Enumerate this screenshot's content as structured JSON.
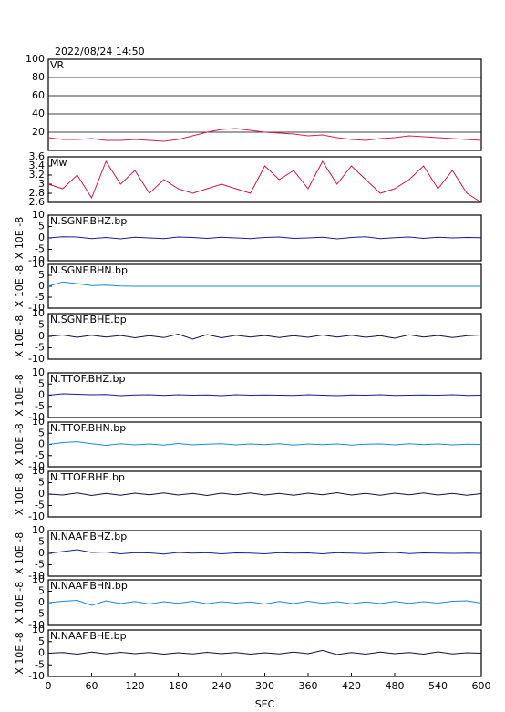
{
  "chart_data": [
    {
      "type": "line",
      "title": "2022/08/24 14:50",
      "xlim": [
        0,
        600
      ],
      "ylim": [
        0,
        100
      ],
      "yticks": [
        20,
        40,
        60,
        80,
        100
      ],
      "grid": true,
      "x": [
        0,
        20,
        40,
        60,
        80,
        100,
        120,
        140,
        160,
        180,
        200,
        220,
        240,
        260,
        280,
        300,
        320,
        340,
        360,
        380,
        400,
        420,
        440,
        460,
        480,
        500,
        520,
        540,
        560,
        580,
        600
      ],
      "series": [
        {
          "name": "VR",
          "color": "#d4204c",
          "values": [
            14,
            12,
            12,
            13,
            11,
            11,
            12,
            11,
            10,
            12,
            16,
            20,
            23,
            24,
            22,
            20,
            19,
            18,
            16,
            17,
            14,
            12,
            11,
            13,
            14,
            16,
            15,
            14,
            13,
            12,
            11
          ]
        }
      ]
    },
    {
      "type": "line",
      "xlim": [
        0,
        600
      ],
      "ylim": [
        2.6,
        3.6
      ],
      "yticks": [
        2.6,
        2.8,
        3,
        3.2,
        3.4,
        3.6
      ],
      "grid": false,
      "x": [
        0,
        20,
        40,
        60,
        80,
        100,
        120,
        140,
        160,
        180,
        200,
        220,
        240,
        260,
        280,
        300,
        320,
        340,
        360,
        380,
        400,
        420,
        440,
        460,
        480,
        500,
        520,
        540,
        560,
        580,
        600
      ],
      "series": [
        {
          "name": "Mw",
          "color": "#c8184a",
          "values": [
            3.0,
            2.9,
            3.2,
            2.7,
            3.5,
            3.0,
            3.3,
            2.8,
            3.1,
            2.9,
            2.8,
            2.9,
            3.0,
            2.9,
            2.8,
            3.4,
            3.1,
            3.3,
            2.9,
            3.5,
            3.0,
            3.4,
            3.1,
            2.8,
            2.9,
            3.1,
            3.4,
            2.9,
            3.3,
            2.8,
            2.6
          ]
        }
      ]
    },
    {
      "type": "line",
      "ylabel": "X 10E -8",
      "xlim": [
        0,
        600
      ],
      "ylim": [
        -10,
        10
      ],
      "yticks": [
        -10,
        -5,
        0,
        5,
        10
      ],
      "x": [
        0,
        20,
        40,
        60,
        80,
        100,
        120,
        140,
        160,
        180,
        200,
        220,
        240,
        260,
        280,
        300,
        320,
        340,
        360,
        380,
        400,
        420,
        440,
        460,
        480,
        500,
        520,
        540,
        560,
        580,
        600
      ],
      "series": [
        {
          "name": "N.SGNF.BHZ.bp",
          "color": "#1a1a9c",
          "values": [
            0,
            0.5,
            0.4,
            -0.3,
            0.2,
            -0.4,
            0.3,
            0,
            -0.3,
            0.4,
            0.2,
            -0.2,
            0.3,
            0,
            -0.3,
            0.2,
            0.4,
            -0.2,
            0,
            0.3,
            -0.4,
            0.2,
            0.5,
            -0.3,
            0.1,
            0.4,
            -0.2,
            0.3,
            0,
            0.2,
            0.1
          ]
        }
      ]
    },
    {
      "type": "line",
      "ylabel": "X 10E -8",
      "xlim": [
        0,
        600
      ],
      "ylim": [
        -10,
        10
      ],
      "yticks": [
        -10,
        -5,
        0,
        5,
        10
      ],
      "x": [
        0,
        20,
        40,
        60,
        80,
        100,
        120,
        140,
        160,
        180,
        200,
        220,
        240,
        260,
        280,
        300,
        320,
        340,
        360,
        380,
        400,
        420,
        440,
        460,
        480,
        500,
        520,
        540,
        560,
        580,
        600
      ],
      "series": [
        {
          "name": "N.SGNF.BHN.bp",
          "color": "#1a8ad4",
          "values": [
            0,
            2.0,
            1.2,
            0.3,
            0.5,
            0.1,
            0,
            0,
            0,
            0,
            0,
            0,
            0,
            0,
            0,
            0,
            0,
            0,
            0,
            0,
            0,
            0,
            0,
            0,
            0,
            0,
            0,
            0,
            0,
            0,
            0
          ]
        }
      ]
    },
    {
      "type": "line",
      "ylabel": "X 10E -8",
      "xlim": [
        0,
        600
      ],
      "ylim": [
        -10,
        10
      ],
      "yticks": [
        -10,
        -5,
        0,
        5,
        10
      ],
      "x": [
        0,
        20,
        40,
        60,
        80,
        100,
        120,
        140,
        160,
        180,
        200,
        220,
        240,
        260,
        280,
        300,
        320,
        340,
        360,
        380,
        400,
        420,
        440,
        460,
        480,
        500,
        520,
        540,
        560,
        580,
        600
      ],
      "series": [
        {
          "name": "N.SGNF.BHE.bp",
          "color": "#101040",
          "values": [
            0,
            0.6,
            -0.4,
            0.5,
            -0.3,
            0.4,
            -0.6,
            0.3,
            -0.5,
            1.0,
            -1.2,
            0.8,
            -0.6,
            0.5,
            -0.3,
            0.4,
            -0.5,
            0.3,
            -0.4,
            0.6,
            -0.3,
            0.5,
            -0.4,
            0.3,
            -0.8,
            0.7,
            -0.3,
            0.4,
            -0.5,
            0.3,
            0.6
          ]
        }
      ]
    },
    {
      "type": "line",
      "ylabel": "X 10E -8",
      "xlim": [
        0,
        600
      ],
      "ylim": [
        -10,
        10
      ],
      "yticks": [
        -10,
        -5,
        0,
        5,
        10
      ],
      "x": [
        0,
        20,
        40,
        60,
        80,
        100,
        120,
        140,
        160,
        180,
        200,
        220,
        240,
        260,
        280,
        300,
        320,
        340,
        360,
        380,
        400,
        420,
        440,
        460,
        480,
        500,
        520,
        540,
        560,
        580,
        600
      ],
      "series": [
        {
          "name": "N.TTOF.BHZ.bp",
          "color": "#1a1a9c",
          "values": [
            0,
            0.6,
            0.4,
            0.2,
            0.3,
            -0.2,
            0.1,
            0.2,
            -0.1,
            0.2,
            0,
            0.1,
            -0.2,
            0.2,
            0,
            0.1,
            0,
            -0.1,
            0.2,
            0,
            -0.2,
            0.1,
            0,
            0.2,
            -0.1,
            0,
            0.1,
            0,
            0.2,
            -0.1,
            0
          ]
        }
      ]
    },
    {
      "type": "line",
      "ylabel": "X 10E -8",
      "xlim": [
        0,
        600
      ],
      "ylim": [
        -10,
        10
      ],
      "yticks": [
        -10,
        -5,
        0,
        5,
        10
      ],
      "x": [
        0,
        20,
        40,
        60,
        80,
        100,
        120,
        140,
        160,
        180,
        200,
        220,
        240,
        260,
        280,
        300,
        320,
        340,
        360,
        380,
        400,
        420,
        440,
        460,
        480,
        500,
        520,
        540,
        560,
        580,
        600
      ],
      "series": [
        {
          "name": "N.TTOF.BHN.bp",
          "color": "#1a8ad4",
          "values": [
            0,
            0.8,
            1.2,
            0.3,
            -0.4,
            0.3,
            -0.2,
            0.2,
            -0.3,
            0.4,
            -0.2,
            0.1,
            0.3,
            -0.2,
            0.2,
            -0.1,
            0.3,
            -0.3,
            0.2,
            -0.1,
            0.2,
            -0.3,
            0.1,
            0.2,
            -0.2,
            0.3,
            -0.1,
            0.2,
            -0.2,
            0.1,
            0
          ]
        }
      ]
    },
    {
      "type": "line",
      "ylabel": "X 10E -8",
      "xlim": [
        0,
        600
      ],
      "ylim": [
        -10,
        10
      ],
      "yticks": [
        -10,
        -5,
        0,
        5,
        10
      ],
      "x": [
        0,
        20,
        40,
        60,
        80,
        100,
        120,
        140,
        160,
        180,
        200,
        220,
        240,
        260,
        280,
        300,
        320,
        340,
        360,
        380,
        400,
        420,
        440,
        460,
        480,
        500,
        520,
        540,
        560,
        580,
        600
      ],
      "series": [
        {
          "name": "N.TTOF.BHE.bp",
          "color": "#101040",
          "values": [
            0,
            -0.4,
            0.5,
            -0.6,
            0.3,
            -0.5,
            0.4,
            -0.3,
            0.5,
            -0.4,
            0.3,
            -0.6,
            0.4,
            -0.3,
            0.5,
            -0.4,
            0.3,
            -0.5,
            0.4,
            -0.3,
            0.6,
            -0.4,
            0.3,
            -0.5,
            0.4,
            -0.3,
            0.5,
            -0.4,
            0.3,
            -0.5,
            0.2
          ]
        }
      ]
    },
    {
      "type": "line",
      "ylabel": "X 10E -8",
      "xlim": [
        0,
        600
      ],
      "ylim": [
        -10,
        10
      ],
      "yticks": [
        -10,
        -5,
        0,
        5,
        10
      ],
      "x": [
        0,
        20,
        40,
        60,
        80,
        100,
        120,
        140,
        160,
        180,
        200,
        220,
        240,
        260,
        280,
        300,
        320,
        340,
        360,
        380,
        400,
        420,
        440,
        460,
        480,
        500,
        520,
        540,
        560,
        580,
        600
      ],
      "series": [
        {
          "name": "N.NAAF.BHZ.bp",
          "color": "#1a1a9c",
          "values": [
            0,
            0.8,
            1.6,
            0.4,
            0.6,
            -0.2,
            0.3,
            0.2,
            -0.3,
            0.4,
            0.1,
            0.3,
            -0.2,
            0.2,
            0.1,
            -0.2,
            0.3,
            0.1,
            0.2,
            -0.2,
            0.3,
            0.1,
            -0.1,
            0.2,
            0.4,
            -0.1,
            0.2,
            0.1,
            0,
            0.1,
            0
          ]
        }
      ]
    },
    {
      "type": "line",
      "ylabel": "X 10E -8",
      "xlim": [
        0,
        600
      ],
      "ylim": [
        -10,
        10
      ],
      "yticks": [
        -10,
        -5,
        0,
        5,
        10
      ],
      "x": [
        0,
        20,
        40,
        60,
        80,
        100,
        120,
        140,
        160,
        180,
        200,
        220,
        240,
        260,
        280,
        300,
        320,
        340,
        360,
        380,
        400,
        420,
        440,
        460,
        480,
        500,
        520,
        540,
        560,
        580,
        600
      ],
      "series": [
        {
          "name": "N.NAAF.BHN.bp",
          "color": "#1a8ad4",
          "values": [
            0,
            0.6,
            1.0,
            -1.2,
            0.8,
            -0.4,
            0.5,
            -0.6,
            0.4,
            -0.3,
            0.6,
            -0.5,
            0.4,
            -0.2,
            0.3,
            -0.6,
            0.5,
            -0.4,
            0.6,
            -0.3,
            0.4,
            -0.5,
            0.3,
            -0.4,
            0.5,
            -0.3,
            0.4,
            -0.2,
            0.6,
            0.8,
            -0.2
          ]
        }
      ]
    },
    {
      "type": "line",
      "ylabel": "X 10E -8",
      "xlim": [
        0,
        600
      ],
      "ylim": [
        -10,
        10
      ],
      "yticks": [
        -10,
        -5,
        0,
        5,
        10
      ],
      "xticks": [
        0,
        60,
        120,
        180,
        240,
        300,
        360,
        420,
        480,
        540,
        600
      ],
      "xlabel": "SEC",
      "x": [
        0,
        20,
        40,
        60,
        80,
        100,
        120,
        140,
        160,
        180,
        200,
        220,
        240,
        260,
        280,
        300,
        320,
        340,
        360,
        380,
        400,
        420,
        440,
        460,
        480,
        500,
        520,
        540,
        560,
        580,
        600
      ],
      "series": [
        {
          "name": "N.NAAF.BHE.bp",
          "color": "#101040",
          "values": [
            0,
            0.3,
            -0.4,
            0.5,
            -0.3,
            0.4,
            -0.2,
            0.3,
            -0.4,
            0.2,
            -0.3,
            0.4,
            -0.2,
            0.3,
            -0.4,
            0.2,
            -0.3,
            0.5,
            -0.2,
            1.2,
            -0.6,
            0.3,
            -0.4,
            0.5,
            -0.2,
            0.3,
            -0.4,
            0.6,
            -0.3,
            0.2,
            0
          ]
        }
      ]
    }
  ]
}
